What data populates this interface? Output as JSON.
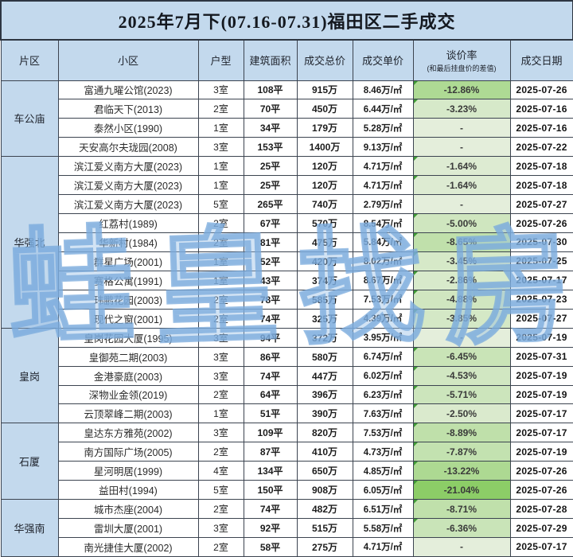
{
  "title": "2025年7月下(07.16-07.31)福田区二手成交",
  "columns": {
    "district": "片区",
    "community": "小区",
    "layout": "户型",
    "area": "建筑面积",
    "total_price": "成交总价",
    "unit_price": "成交单价",
    "rate": "谈价率",
    "rate_note": "(和最后挂盘价的差值)",
    "date": "成交日期"
  },
  "watermark": {
    "chars": [
      "蛙",
      "皇",
      "找",
      "房"
    ]
  },
  "colors": {
    "header_blue": "#c3d9ed",
    "border": "#3c4450",
    "rate_base_green": "#e4eedb",
    "rate_strong_green": "#8ccd67",
    "rate_max_abs_percent": 21.04,
    "comment_marker_green": "#3f9b35"
  },
  "sections": [
    {
      "district": "车公庙",
      "rows": [
        {
          "name": "富通九曜公馆(2023)",
          "layout": "3室",
          "area": "108平",
          "total": "915万",
          "unit": "8.46万/㎡",
          "rate": "-12.86%",
          "date": "2025-07-26"
        },
        {
          "name": "君临天下(2013)",
          "layout": "2室",
          "area": "70平",
          "total": "450万",
          "unit": "6.44万/㎡",
          "rate": "-3.23%",
          "date": "2025-07-16"
        },
        {
          "name": "泰然小区(1990)",
          "layout": "1室",
          "area": "34平",
          "total": "179万",
          "unit": "5.28万/㎡",
          "rate": "-",
          "date": "2025-07-16"
        },
        {
          "name": "天安高尔夫珑园(2008)",
          "layout": "3室",
          "area": "153平",
          "total": "1400万",
          "unit": "9.13万/㎡",
          "rate": "-",
          "date": "2025-07-22"
        }
      ]
    },
    {
      "district": "华强北",
      "rows": [
        {
          "name": "滨江爱义南方大厦(2023)",
          "layout": "1室",
          "area": "25平",
          "total": "120万",
          "unit": "4.71万/㎡",
          "rate": "-1.64%",
          "date": "2025-07-18"
        },
        {
          "name": "滨江爱义南方大厦(2023)",
          "layout": "1室",
          "area": "25平",
          "total": "120万",
          "unit": "4.71万/㎡",
          "rate": "-1.64%",
          "date": "2025-07-18"
        },
        {
          "name": "滨江爱义南方大厦(2023)",
          "layout": "5室",
          "area": "265平",
          "total": "740万",
          "unit": "2.79万/㎡",
          "rate": "-",
          "date": "2025-07-27"
        },
        {
          "name": "红荔村(1989)",
          "layout": "2室",
          "area": "67平",
          "total": "570万",
          "unit": "8.54万/㎡",
          "rate": "-5.00%",
          "date": "2025-07-26"
        },
        {
          "name": "华新村(1984)",
          "layout": "2室",
          "area": "81平",
          "total": "475万",
          "unit": "5.84万/㎡",
          "rate": "-8.65%",
          "date": "2025-07-30"
        },
        {
          "name": "群星广场(2001)",
          "layout": "1室",
          "area": "52平",
          "total": "420万",
          "unit": "8.02万/㎡",
          "rate": "-3.45%",
          "date": "2025-07-25"
        },
        {
          "name": "赛格公寓(1991)",
          "layout": "1室",
          "area": "43平",
          "total": "374万",
          "unit": "8.67万/㎡",
          "rate": "-2.86%",
          "date": "2025-07-17"
        },
        {
          "name": "玮鹏花园(2003)",
          "layout": "2室",
          "area": "78平",
          "total": "585万",
          "unit": "7.53万/㎡",
          "rate": "-4.88%",
          "date": "2025-07-23"
        },
        {
          "name": "现代之窗(2001)",
          "layout": "2室",
          "area": "74平",
          "total": "325万",
          "unit": "4.39万/㎡",
          "rate": "-3.85%",
          "date": "2025-07-27"
        }
      ]
    },
    {
      "district": "皇岗",
      "rows": [
        {
          "name": "皇岗花园大厦(1995)",
          "layout": "3室",
          "area": "94平",
          "total": "372万",
          "unit": "3.95万/㎡",
          "rate": "-",
          "date": "2025-07-19"
        },
        {
          "name": "皇御苑二期(2003)",
          "layout": "3室",
          "area": "86平",
          "total": "580万",
          "unit": "6.74万/㎡",
          "rate": "-6.45%",
          "date": "2025-07-31"
        },
        {
          "name": "金港豪庭(2003)",
          "layout": "3室",
          "area": "74平",
          "total": "447万",
          "unit": "6.02万/㎡",
          "rate": "-4.53%",
          "date": "2025-07-19"
        },
        {
          "name": "深物业金领(2019)",
          "layout": "2室",
          "area": "64平",
          "total": "396万",
          "unit": "6.23万/㎡",
          "rate": "-5.71%",
          "date": "2025-07-19"
        },
        {
          "name": "云顶翠峰二期(2003)",
          "layout": "1室",
          "area": "51平",
          "total": "390万",
          "unit": "7.63万/㎡",
          "rate": "-2.50%",
          "date": "2025-07-17"
        }
      ]
    },
    {
      "district": "石厦",
      "rows": [
        {
          "name": "皇达东方雅苑(2002)",
          "layout": "3室",
          "area": "109平",
          "total": "820万",
          "unit": "7.53万/㎡",
          "rate": "-8.89%",
          "date": "2025-07-17"
        },
        {
          "name": "南方国际广场(2005)",
          "layout": "2室",
          "area": "87平",
          "total": "410万",
          "unit": "4.73万/㎡",
          "rate": "-7.87%",
          "date": "2025-07-19"
        },
        {
          "name": "星河明居(1999)",
          "layout": "4室",
          "area": "134平",
          "total": "650万",
          "unit": "4.85万/㎡",
          "rate": "-13.22%",
          "date": "2025-07-26"
        },
        {
          "name": "益田村(1994)",
          "layout": "5室",
          "area": "150平",
          "total": "908万",
          "unit": "6.05万/㎡",
          "rate": "-21.04%",
          "date": "2025-07-26"
        }
      ]
    },
    {
      "district": "华强南",
      "rows": [
        {
          "name": "城市杰座(2004)",
          "layout": "2室",
          "area": "74平",
          "total": "482万",
          "unit": "6.51万/㎡",
          "rate": "-8.71%",
          "date": "2025-07-28"
        },
        {
          "name": "雷圳大厦(2001)",
          "layout": "3室",
          "area": "92平",
          "total": "515万",
          "unit": "5.58万/㎡",
          "rate": "-6.36%",
          "date": "2025-07-29"
        },
        {
          "name": "南光捷佳大厦(2002)",
          "layout": "2室",
          "area": "58平",
          "total": "275万",
          "unit": "4.71万/㎡",
          "rate": "-",
          "date": "2025-07-17"
        }
      ]
    }
  ]
}
